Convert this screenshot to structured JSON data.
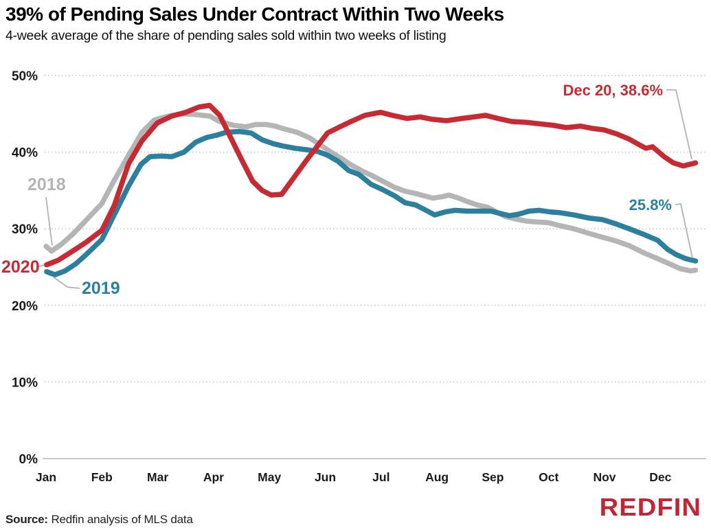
{
  "header": {
    "title": "39% of Pending Sales Under Contract Within Two Weeks",
    "subtitle": "4-week average of the share of pending sales sold within two weeks of listing"
  },
  "footer": {
    "source_label": "Source:",
    "source_text": "Redfin analysis of MLS data",
    "logo": "REDFIN",
    "logo_color": "#c02633"
  },
  "chart_data": {
    "type": "line",
    "title": "39% of Pending Sales Under Contract Within Two Weeks",
    "subtitle": "4-week average of the share of pending sales sold within two weeks of listing",
    "x_axis": {
      "unit": "month",
      "tick_labels": [
        "Jan",
        "Feb",
        "Mar",
        "Apr",
        "May",
        "Jun",
        "Jul",
        "Aug",
        "Sep",
        "Oct",
        "Nov",
        "Dec"
      ],
      "range_months": [
        0,
        11.66
      ]
    },
    "y_axis": {
      "tick_labels": [
        "0%",
        "10%",
        "20%",
        "30%",
        "40%",
        "50%"
      ],
      "tick_values": [
        0,
        10,
        20,
        30,
        40,
        50
      ],
      "min": 0,
      "max": 50,
      "grid": "dotted"
    },
    "grid_color": "#cfcfcf",
    "axis_text_color": "#1a1a1a",
    "callout_color": "#b3b3b3",
    "series": [
      {
        "name": "2018",
        "color": "#b5b5b5",
        "points": [
          [
            0.0,
            27.7
          ],
          [
            0.1,
            27.1
          ],
          [
            0.28,
            28.0
          ],
          [
            0.48,
            29.3
          ],
          [
            0.73,
            31.2
          ],
          [
            1.0,
            33.3
          ],
          [
            1.22,
            36.3
          ],
          [
            1.48,
            39.6
          ],
          [
            1.72,
            42.6
          ],
          [
            1.94,
            44.2
          ],
          [
            2.19,
            44.7
          ],
          [
            2.44,
            45.0
          ],
          [
            2.68,
            44.9
          ],
          [
            2.93,
            44.7
          ],
          [
            3.11,
            44.0
          ],
          [
            3.36,
            43.5
          ],
          [
            3.58,
            43.3
          ],
          [
            3.75,
            43.6
          ],
          [
            3.95,
            43.6
          ],
          [
            4.1,
            43.4
          ],
          [
            4.28,
            43.0
          ],
          [
            4.49,
            42.6
          ],
          [
            4.71,
            41.9
          ],
          [
            4.92,
            40.9
          ],
          [
            5.08,
            40.1
          ],
          [
            5.26,
            39.3
          ],
          [
            5.47,
            38.3
          ],
          [
            5.67,
            37.5
          ],
          [
            5.82,
            37.0
          ],
          [
            6.03,
            36.2
          ],
          [
            6.24,
            35.4
          ],
          [
            6.43,
            34.9
          ],
          [
            6.62,
            34.6
          ],
          [
            6.77,
            34.3
          ],
          [
            6.93,
            34.0
          ],
          [
            7.11,
            34.2
          ],
          [
            7.21,
            34.4
          ],
          [
            7.39,
            34.0
          ],
          [
            7.56,
            33.5
          ],
          [
            7.72,
            33.1
          ],
          [
            7.91,
            32.8
          ],
          [
            8.06,
            32.2
          ],
          [
            8.22,
            31.6
          ],
          [
            8.4,
            31.3
          ],
          [
            8.59,
            31.0
          ],
          [
            8.77,
            30.9
          ],
          [
            8.99,
            30.8
          ],
          [
            9.2,
            30.4
          ],
          [
            9.45,
            30.0
          ],
          [
            9.72,
            29.4
          ],
          [
            9.96,
            28.9
          ],
          [
            10.21,
            28.4
          ],
          [
            10.44,
            27.8
          ],
          [
            10.69,
            26.9
          ],
          [
            10.95,
            26.1
          ],
          [
            11.17,
            25.4
          ],
          [
            11.35,
            24.8
          ],
          [
            11.54,
            24.5
          ],
          [
            11.63,
            24.6
          ]
        ]
      },
      {
        "name": "2019",
        "color": "#2d7f9e",
        "points": [
          [
            0.01,
            24.4
          ],
          [
            0.16,
            24.0
          ],
          [
            0.34,
            24.5
          ],
          [
            0.53,
            25.4
          ],
          [
            0.73,
            26.7
          ],
          [
            1.0,
            28.6
          ],
          [
            1.22,
            31.8
          ],
          [
            1.48,
            35.6
          ],
          [
            1.7,
            38.4
          ],
          [
            1.86,
            39.4
          ],
          [
            2.07,
            39.5
          ],
          [
            2.25,
            39.4
          ],
          [
            2.47,
            40.0
          ],
          [
            2.68,
            41.3
          ],
          [
            2.87,
            41.9
          ],
          [
            3.05,
            42.2
          ],
          [
            3.23,
            42.6
          ],
          [
            3.46,
            42.7
          ],
          [
            3.67,
            42.5
          ],
          [
            3.87,
            41.6
          ],
          [
            4.07,
            41.1
          ],
          [
            4.24,
            40.8
          ],
          [
            4.46,
            40.5
          ],
          [
            4.69,
            40.3
          ],
          [
            4.86,
            40.1
          ],
          [
            5.04,
            39.6
          ],
          [
            5.23,
            38.8
          ],
          [
            5.42,
            37.6
          ],
          [
            5.6,
            37.1
          ],
          [
            5.82,
            35.8
          ],
          [
            6.03,
            35.1
          ],
          [
            6.24,
            34.3
          ],
          [
            6.43,
            33.4
          ],
          [
            6.62,
            33.1
          ],
          [
            6.78,
            32.5
          ],
          [
            6.96,
            31.8
          ],
          [
            7.15,
            32.2
          ],
          [
            7.32,
            32.4
          ],
          [
            7.54,
            32.3
          ],
          [
            7.79,
            32.3
          ],
          [
            7.97,
            32.3
          ],
          [
            8.13,
            32.0
          ],
          [
            8.3,
            31.7
          ],
          [
            8.46,
            31.9
          ],
          [
            8.65,
            32.3
          ],
          [
            8.83,
            32.4
          ],
          [
            9.02,
            32.2
          ],
          [
            9.2,
            32.1
          ],
          [
            9.45,
            31.8
          ],
          [
            9.72,
            31.4
          ],
          [
            9.96,
            31.2
          ],
          [
            10.18,
            30.7
          ],
          [
            10.44,
            30.0
          ],
          [
            10.69,
            29.3
          ],
          [
            10.95,
            28.5
          ],
          [
            11.13,
            27.3
          ],
          [
            11.29,
            26.6
          ],
          [
            11.45,
            26.1
          ],
          [
            11.63,
            25.8
          ]
        ]
      },
      {
        "name": "2020",
        "color": "#c62a33",
        "points": [
          [
            0.01,
            25.3
          ],
          [
            0.22,
            25.9
          ],
          [
            0.48,
            27.1
          ],
          [
            0.73,
            28.3
          ],
          [
            1.0,
            29.8
          ],
          [
            1.22,
            33.0
          ],
          [
            1.48,
            38.5
          ],
          [
            1.72,
            41.5
          ],
          [
            1.99,
            43.8
          ],
          [
            2.25,
            44.7
          ],
          [
            2.5,
            45.2
          ],
          [
            2.74,
            45.9
          ],
          [
            2.93,
            46.1
          ],
          [
            3.11,
            44.8
          ],
          [
            3.3,
            42.0
          ],
          [
            3.51,
            38.9
          ],
          [
            3.7,
            36.2
          ],
          [
            3.87,
            35.0
          ],
          [
            4.03,
            34.4
          ],
          [
            4.22,
            34.5
          ],
          [
            4.46,
            36.9
          ],
          [
            4.67,
            39.0
          ],
          [
            4.86,
            40.8
          ],
          [
            5.04,
            42.5
          ],
          [
            5.26,
            43.3
          ],
          [
            5.46,
            44.0
          ],
          [
            5.71,
            44.8
          ],
          [
            5.99,
            45.2
          ],
          [
            6.2,
            44.8
          ],
          [
            6.46,
            44.4
          ],
          [
            6.7,
            44.6
          ],
          [
            6.9,
            44.3
          ],
          [
            7.17,
            44.1
          ],
          [
            7.45,
            44.4
          ],
          [
            7.66,
            44.6
          ],
          [
            7.87,
            44.8
          ],
          [
            8.09,
            44.4
          ],
          [
            8.34,
            44.0
          ],
          [
            8.59,
            43.9
          ],
          [
            8.83,
            43.7
          ],
          [
            9.08,
            43.5
          ],
          [
            9.32,
            43.2
          ],
          [
            9.57,
            43.4
          ],
          [
            9.78,
            43.1
          ],
          [
            9.99,
            42.9
          ],
          [
            10.21,
            42.4
          ],
          [
            10.44,
            41.7
          ],
          [
            10.64,
            40.9
          ],
          [
            10.74,
            40.5
          ],
          [
            10.86,
            40.7
          ],
          [
            11.07,
            39.4
          ],
          [
            11.23,
            38.6
          ],
          [
            11.41,
            38.2
          ],
          [
            11.63,
            38.6
          ]
        ]
      }
    ],
    "annotations": [
      {
        "id": "label2018",
        "text": "2018",
        "series": "2018"
      },
      {
        "id": "label2020",
        "text": "2020",
        "series": "2020"
      },
      {
        "id": "label2019",
        "text": "2019",
        "series": "2019"
      },
      {
        "id": "labelDec20",
        "text": "Dec 20, 38.6%",
        "series": "2020"
      },
      {
        "id": "label258",
        "text": "25.8%",
        "series": "2019"
      }
    ],
    "legend_position": "inline-labels"
  }
}
